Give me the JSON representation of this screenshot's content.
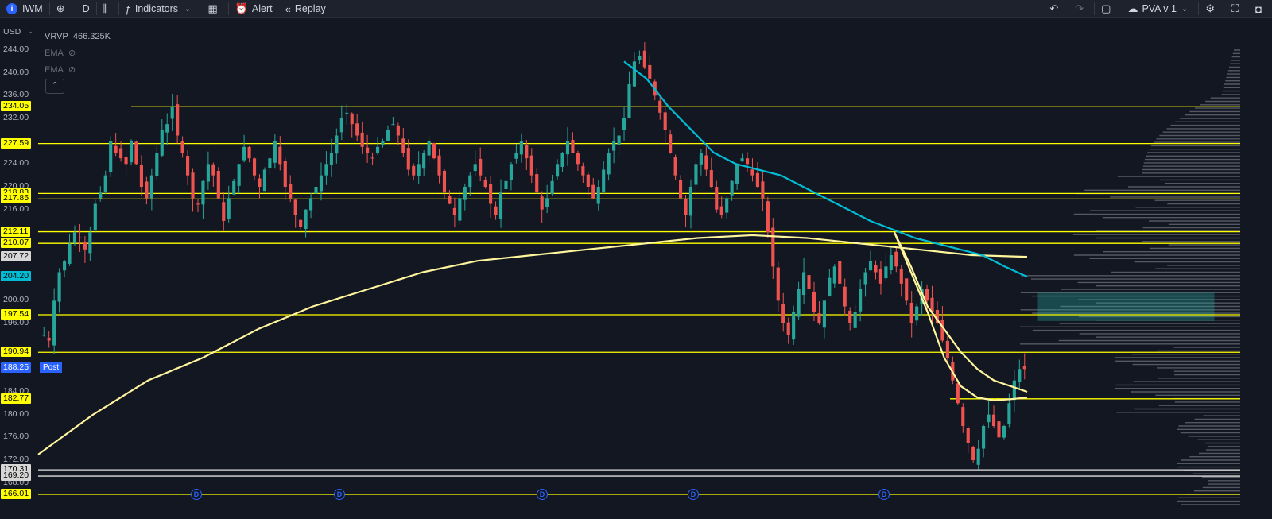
{
  "toolbar": {
    "symbol": "IWM",
    "interval": "D",
    "indicators_label": "Indicators",
    "alert_label": "Alert",
    "replay_label": "Replay",
    "layout_name": "PVA v 1"
  },
  "legend": {
    "vrvp_label": "VRVP",
    "vrvp_value": "466.325K",
    "ema1_label": "EMA",
    "ema2_label": "EMA"
  },
  "price_axis": {
    "currency": "USD",
    "ticks": [
      "244.00",
      "240.00",
      "236.00",
      "232.00",
      "224.00",
      "220.00",
      "216.00",
      "208.00",
      "200.00",
      "196.00",
      "184.00",
      "180.00",
      "176.00",
      "172.00",
      "168.00"
    ]
  },
  "levels": [
    {
      "label": "234.05",
      "value": 234.05,
      "color": "#ffff00"
    },
    {
      "label": "227.59",
      "value": 227.59,
      "color": "#ffff00"
    },
    {
      "label": "218.83",
      "value": 218.83,
      "color": "#ffff00"
    },
    {
      "label": "217.85",
      "value": 217.85,
      "color": "#ffff00"
    },
    {
      "label": "212.11",
      "value": 212.11,
      "color": "#ffff00"
    },
    {
      "label": "210.07",
      "value": 210.07,
      "color": "#ffff00"
    },
    {
      "label": "207.72",
      "value": 207.72,
      "color": "#d6d6d6"
    },
    {
      "label": "204.20",
      "value": 204.2,
      "color": "#00bcd4"
    },
    {
      "label": "197.54",
      "value": 197.54,
      "color": "#ffff00"
    },
    {
      "label": "190.94",
      "value": 190.94,
      "color": "#ffff00"
    },
    {
      "label": "182.77",
      "value": 182.77,
      "color": "#ffff00"
    },
    {
      "label": "170.31",
      "value": 170.31,
      "color": "#d6d6d6"
    },
    {
      "label": "169.20",
      "value": 169.2,
      "color": "#d6d6d6"
    },
    {
      "label": "166.01",
      "value": 166.01,
      "color": "#ffff00"
    }
  ],
  "current_price": {
    "label": "188.25",
    "value": 188.25,
    "tag": "Post"
  },
  "dividend_marker": "D",
  "colors": {
    "up": "#26a69a",
    "down": "#ef5350",
    "level": "#ffff00",
    "ema_fast": "#00bcd4",
    "ema_slow": "#fff59d",
    "background": "#131722"
  },
  "chart_data": {
    "type": "candlestick",
    "symbol": "IWM",
    "interval": "D",
    "ylim": [
      164,
      247
    ],
    "closes_approx": [
      194,
      193,
      200,
      205,
      207,
      210,
      212,
      211,
      209,
      212,
      217,
      219,
      222,
      228,
      226,
      225,
      224,
      228,
      224,
      220,
      218,
      222,
      226,
      230,
      231,
      234,
      229,
      226,
      222,
      218,
      217,
      221,
      224,
      222,
      218,
      214,
      218,
      221,
      224,
      227,
      225,
      222,
      220,
      223,
      225,
      228,
      224,
      220,
      218,
      215,
      213,
      216,
      218,
      220,
      222,
      224,
      226,
      229,
      232,
      233,
      231,
      229,
      227,
      226,
      225,
      227,
      228,
      230,
      231,
      229,
      226,
      223,
      222,
      224,
      226,
      228,
      225,
      222,
      219,
      217,
      215,
      218,
      220,
      222,
      224,
      222,
      220,
      217,
      215,
      219,
      221,
      224,
      226,
      228,
      225,
      222,
      219,
      216,
      218,
      221,
      224,
      226,
      228,
      226,
      224,
      222,
      220,
      218,
      220,
      223,
      226,
      228,
      229,
      232,
      238,
      242,
      243,
      241,
      239,
      236,
      233,
      230,
      226,
      222,
      218,
      215,
      220,
      224,
      226,
      223,
      220,
      216,
      215,
      218,
      221,
      224,
      225,
      224,
      222,
      220,
      218,
      212,
      206,
      200,
      196,
      194,
      198,
      202,
      205,
      202,
      198,
      196,
      200,
      204,
      206,
      203,
      199,
      196,
      198,
      202,
      205,
      207,
      205,
      203,
      206,
      208,
      206,
      203,
      200,
      196,
      199,
      202,
      200,
      198,
      196,
      193,
      190,
      186,
      182,
      178,
      175,
      172,
      174,
      178,
      180,
      178,
      176,
      178,
      182,
      186,
      188,
      188
    ],
    "ema_fast_approx": [
      242,
      239,
      234,
      230,
      226,
      224,
      223,
      222,
      220,
      218,
      216,
      214,
      212.5,
      211,
      210,
      209,
      208,
      206,
      204.2
    ],
    "ema_slow_approx": [
      173,
      180,
      186,
      190,
      195,
      199,
      202,
      205,
      207,
      208,
      209,
      210,
      211,
      211.5,
      211,
      210,
      209,
      208,
      207.7
    ]
  }
}
